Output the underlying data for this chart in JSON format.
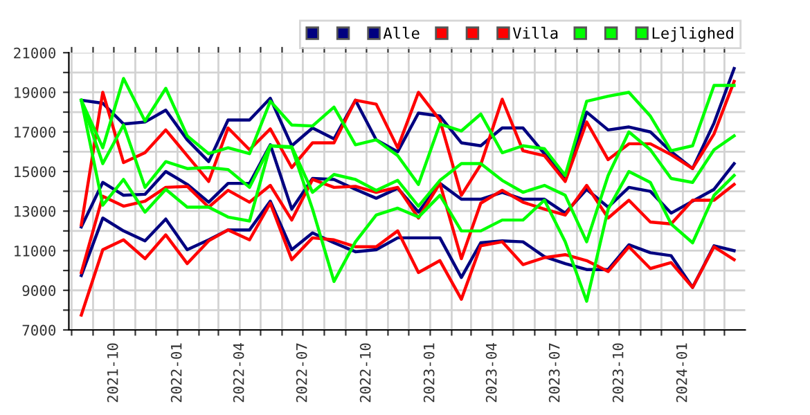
{
  "chart_data": {
    "type": "line",
    "x": [
      "2021-08-15",
      "2021-09-15",
      "2021-10-15",
      "2021-11-15",
      "2021-12-15",
      "2022-01-15",
      "2022-02-15",
      "2022-03-15",
      "2022-04-15",
      "2022-05-15",
      "2022-06-15",
      "2022-07-15",
      "2022-08-15",
      "2022-09-15",
      "2022-10-15",
      "2022-11-15",
      "2022-12-15",
      "2023-01-15",
      "2023-02-15",
      "2023-03-15",
      "2023-04-15",
      "2023-05-15",
      "2023-06-15",
      "2023-07-15",
      "2023-08-15",
      "2023-09-15",
      "2023-10-15",
      "2023-11-15",
      "2023-12-15",
      "2024-01-15",
      "2024-02-15",
      "2024-03-15"
    ],
    "series": [
      {
        "name": null,
        "color": "#000080",
        "values": [
          18600,
          18450,
          17400,
          17500,
          18100,
          16600,
          15500,
          17600,
          17600,
          18700,
          16300,
          17200,
          16650,
          18600,
          16600,
          16000,
          17950,
          17800,
          16450,
          16300,
          17200,
          17200,
          15900,
          14650,
          18000,
          17100,
          17250,
          17000,
          16000,
          15150,
          17450,
          20200
        ]
      },
      {
        "name": null,
        "color": "#000080",
        "values": [
          9750,
          12650,
          12000,
          11500,
          12600,
          11050,
          11550,
          12050,
          12050,
          13500,
          11050,
          11900,
          11400,
          10950,
          11050,
          11650,
          11650,
          11650,
          9650,
          11400,
          11500,
          11450,
          10700,
          10350,
          10050,
          10050,
          11300,
          10900,
          10750,
          9150,
          11250,
          11000
        ]
      },
      {
        "name": "Alle",
        "color": "#000080",
        "values": [
          12200,
          14450,
          13800,
          13850,
          15000,
          14350,
          13450,
          14400,
          14400,
          16350,
          13100,
          14650,
          14600,
          14100,
          13650,
          14150,
          12950,
          14400,
          13600,
          13600,
          13950,
          13600,
          13600,
          12900,
          14100,
          13200,
          14200,
          14000,
          12900,
          13500,
          14100,
          15400
        ]
      },
      {
        "name": null,
        "color": "#ff0000",
        "values": [
          12300,
          19000,
          15450,
          15950,
          17100,
          15800,
          14500,
          17200,
          16100,
          17150,
          15200,
          16450,
          16450,
          18600,
          18400,
          16200,
          19000,
          17600,
          13800,
          15350,
          18650,
          16050,
          15800,
          14500,
          17500,
          15600,
          16400,
          16400,
          15850,
          15150,
          16900,
          19550
        ]
      },
      {
        "name": null,
        "color": "#ff0000",
        "values": [
          7750,
          11050,
          11550,
          10600,
          11800,
          10350,
          11500,
          12050,
          11550,
          13400,
          10550,
          11650,
          11550,
          11200,
          11200,
          12000,
          9900,
          10500,
          8550,
          11250,
          11450,
          10300,
          10650,
          10800,
          10500,
          9950,
          11200,
          10100,
          10400,
          9150,
          11200,
          10550
        ]
      },
      {
        "name": "Villa",
        "color": "#ff0000",
        "values": [
          9900,
          13750,
          13250,
          13500,
          14200,
          14250,
          13200,
          14050,
          13450,
          14300,
          12550,
          14600,
          14200,
          14250,
          13950,
          14200,
          12650,
          14400,
          10600,
          13400,
          14050,
          13450,
          13100,
          12800,
          14300,
          12650,
          13550,
          12450,
          12350,
          13550,
          13550,
          14350
        ]
      },
      {
        "name": null,
        "color": "#00ff00",
        "values": [
          18600,
          16200,
          19700,
          17550,
          19200,
          16800,
          15900,
          16200,
          15900,
          18550,
          17350,
          17300,
          18250,
          16350,
          16600,
          15800,
          14350,
          17400,
          17050,
          17900,
          15950,
          16300,
          16150,
          14800,
          18550,
          18800,
          19000,
          17800,
          16050,
          16300,
          19350,
          19350
        ]
      },
      {
        "name": null,
        "color": "#00ff00",
        "values": [
          18600,
          13300,
          14600,
          12950,
          14100,
          13200,
          13200,
          12700,
          12500,
          16300,
          16200,
          13100,
          9450,
          11450,
          12800,
          13150,
          12700,
          13800,
          12000,
          12000,
          12550,
          12550,
          13550,
          11450,
          8450,
          13100,
          15000,
          14450,
          12350,
          11400,
          13800,
          14800
        ]
      },
      {
        "name": "Lejlighed",
        "color": "#00ff00",
        "values": [
          18600,
          15400,
          17350,
          14200,
          15500,
          15150,
          15200,
          15100,
          14200,
          16300,
          16250,
          13950,
          14850,
          14600,
          14050,
          14550,
          13250,
          14550,
          15400,
          15400,
          14550,
          13950,
          14300,
          13800,
          11450,
          14800,
          17000,
          16100,
          14650,
          14450,
          16100,
          16800
        ]
      }
    ],
    "xlim": [
      "2021-07-28",
      "2024-03-31"
    ],
    "xticks": [
      {
        "value": "2021-08-01",
        "label": null
      },
      {
        "value": "2021-09-01",
        "label": null
      },
      {
        "value": "2021-10-01",
        "label": "2021-10"
      },
      {
        "value": "2021-11-01",
        "label": null
      },
      {
        "value": "2021-12-01",
        "label": null
      },
      {
        "value": "2022-01-01",
        "label": "2022-01"
      },
      {
        "value": "2022-02-01",
        "label": null
      },
      {
        "value": "2022-03-01",
        "label": null
      },
      {
        "value": "2022-04-01",
        "label": "2022-04"
      },
      {
        "value": "2022-05-01",
        "label": null
      },
      {
        "value": "2022-06-01",
        "label": null
      },
      {
        "value": "2022-07-01",
        "label": "2022-07"
      },
      {
        "value": "2022-08-01",
        "label": null
      },
      {
        "value": "2022-09-01",
        "label": null
      },
      {
        "value": "2022-10-01",
        "label": "2022-10"
      },
      {
        "value": "2022-11-01",
        "label": null
      },
      {
        "value": "2022-12-01",
        "label": null
      },
      {
        "value": "2023-01-01",
        "label": "2023-01"
      },
      {
        "value": "2023-02-01",
        "label": null
      },
      {
        "value": "2023-03-01",
        "label": null
      },
      {
        "value": "2023-04-01",
        "label": "2023-04"
      },
      {
        "value": "2023-05-01",
        "label": null
      },
      {
        "value": "2023-06-01",
        "label": null
      },
      {
        "value": "2023-07-01",
        "label": "2023-07"
      },
      {
        "value": "2023-08-01",
        "label": null
      },
      {
        "value": "2023-09-01",
        "label": null
      },
      {
        "value": "2023-10-01",
        "label": "2023-10"
      },
      {
        "value": "2023-11-01",
        "label": null
      },
      {
        "value": "2023-12-01",
        "label": null
      },
      {
        "value": "2024-01-01",
        "label": "2024-01"
      },
      {
        "value": "2024-02-01",
        "label": null
      },
      {
        "value": "2024-03-01",
        "label": null
      }
    ],
    "ylim": [
      7000,
      21000
    ],
    "yticks": [
      7000,
      {
        "value": 8000,
        "label": null
      },
      9000,
      {
        "value": 10000,
        "label": null
      },
      11000,
      {
        "value": 12000,
        "label": null
      },
      13000,
      {
        "value": 14000,
        "label": null
      },
      15000,
      {
        "value": 16000,
        "label": null
      },
      17000,
      {
        "value": 18000,
        "label": null
      },
      19000,
      {
        "value": 20000,
        "label": null
      },
      21000
    ],
    "grid": true,
    "legend": "top right",
    "marker": "none",
    "line_style": "solid"
  }
}
